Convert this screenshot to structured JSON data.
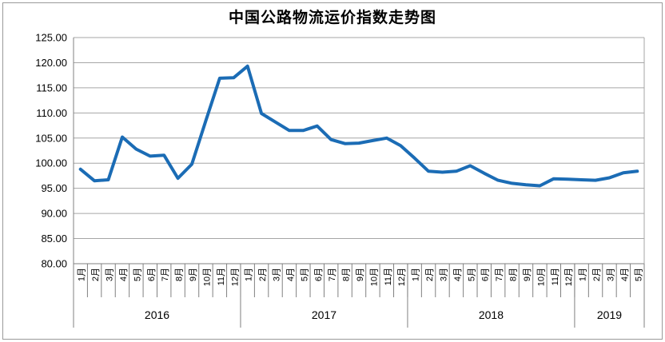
{
  "title": "中国公路物流运价指数走势图",
  "colors": {
    "line": "#1b6cb5",
    "grid": "#a6a6a6",
    "axis": "#808080",
    "frame": "#9a9a9a",
    "text": "#000000",
    "background": "#ffffff"
  },
  "y_axis": {
    "tick_labels": [
      "125.00",
      "120.00",
      "115.00",
      "110.00",
      "105.00",
      "100.00",
      "95.00",
      "90.00",
      "85.00",
      "80.00"
    ]
  },
  "chart_data": {
    "type": "line",
    "title": "中国公路物流运价指数走势图",
    "xlabel": "",
    "ylabel": "",
    "ylim": [
      80,
      125
    ],
    "ytick_step": 5,
    "grid": true,
    "legend": "none",
    "groups": [
      {
        "year": "2016",
        "months": [
          "1月",
          "2月",
          "3月",
          "4月",
          "5月",
          "6月",
          "7月",
          "8月",
          "9月",
          "10月",
          "11月",
          "12月"
        ]
      },
      {
        "year": "2017",
        "months": [
          "1月",
          "2月",
          "3月",
          "4月",
          "5月",
          "6月",
          "7月",
          "8月",
          "9月",
          "10月",
          "11月",
          "12月"
        ]
      },
      {
        "year": "2018",
        "months": [
          "1月",
          "2月",
          "3月",
          "4月",
          "5月",
          "6月",
          "7月",
          "8月",
          "9月",
          "10月",
          "11月",
          "12月"
        ]
      },
      {
        "year": "2019",
        "months": [
          "1月",
          "2月",
          "3月",
          "4月",
          "5月"
        ]
      }
    ],
    "series": {
      "color": "#1b6cb5",
      "values": [
        98.8,
        96.5,
        96.7,
        105.2,
        102.8,
        101.4,
        101.6,
        97.0,
        99.8,
        108.4,
        116.9,
        117.0,
        119.3,
        109.9,
        108.2,
        106.5,
        106.5,
        107.4,
        104.7,
        103.9,
        104.0,
        104.5,
        105.0,
        103.5,
        101.0,
        98.4,
        98.2,
        98.4,
        99.5,
        98.0,
        96.6,
        96.0,
        95.7,
        95.5,
        96.9,
        96.8,
        96.7,
        96.6,
        97.1,
        98.1,
        98.4
      ]
    }
  }
}
